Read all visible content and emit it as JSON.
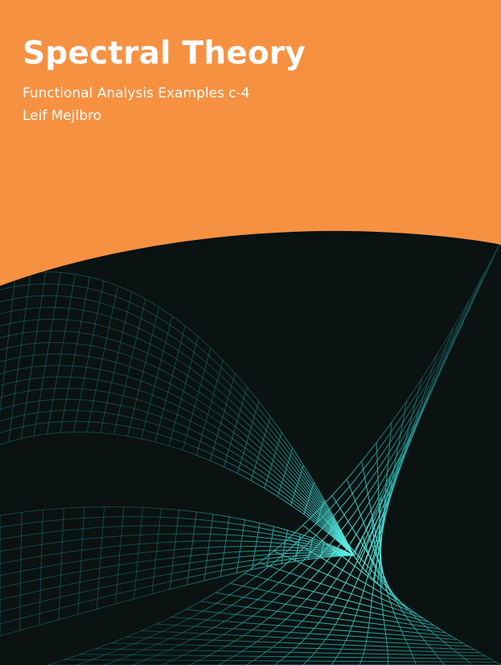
{
  "cover": {
    "title": "Spectral Theory",
    "subtitle": "Functional Analysis Examples c-4",
    "author": "Leif Mejlbro"
  },
  "colors": {
    "orange": "#f79142",
    "dark": "#0a1212",
    "mesh": "#35c6c0"
  }
}
